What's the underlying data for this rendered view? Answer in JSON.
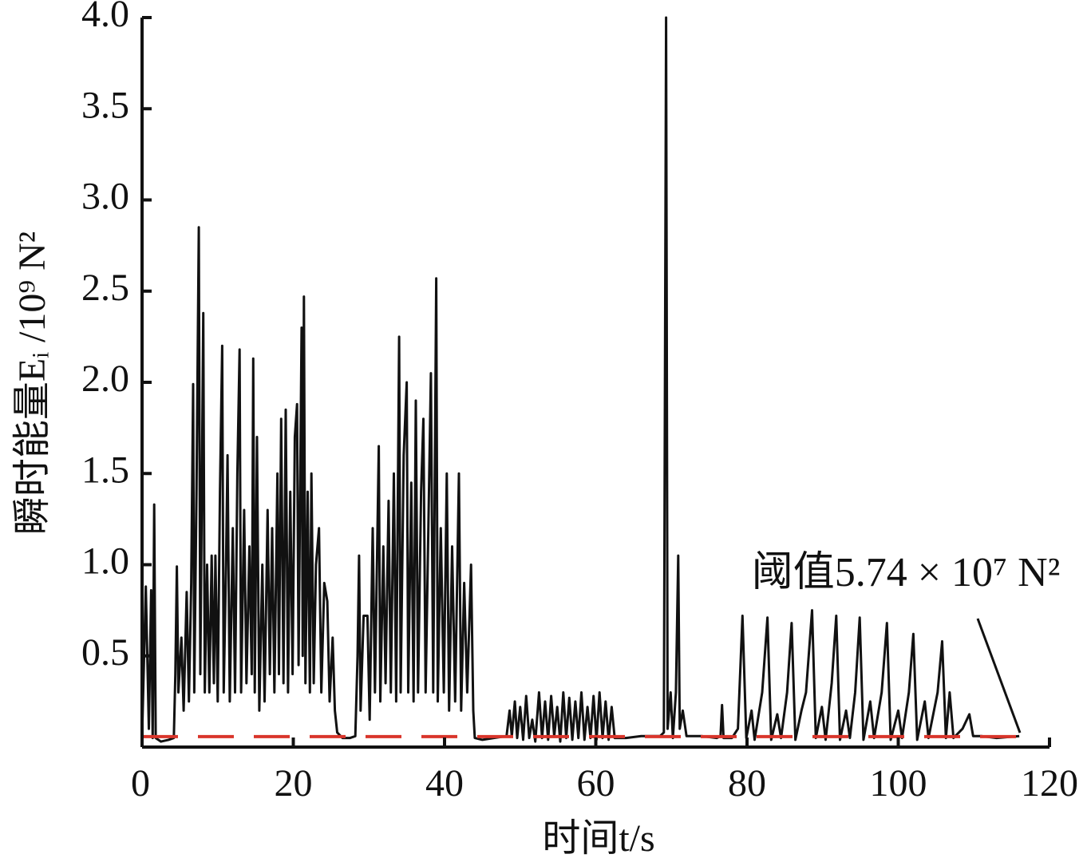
{
  "chart_data": {
    "type": "line",
    "y_label": "瞬时能量Eᵢ /10⁹ N²",
    "x_label": "时间t/s",
    "xlim": [
      0,
      120
    ],
    "ylim": [
      0,
      4
    ],
    "xticks": [
      0,
      20,
      40,
      60,
      80,
      100,
      120
    ],
    "yticks": [
      0.5,
      {
        "value": 1,
        "label": "1.0"
      },
      1.5,
      {
        "value": 2,
        "label": "2.0"
      },
      2.5,
      {
        "value": 3,
        "label": "3.0"
      },
      3.5,
      {
        "value": 4,
        "label": "4.0"
      }
    ],
    "threshold": {
      "value": 0.0574,
      "label": "阈值5.74 × 10⁷ N²",
      "color": "#d9352b"
    },
    "x": [
      0,
      0.5,
      0.9,
      1.2,
      1.4,
      1.6,
      1.8,
      2.5,
      3.5,
      4.2,
      4.4,
      4.6,
      4.8,
      5.2,
      5.5,
      5.9,
      6.2,
      6.5,
      6.75,
      6.9,
      7.2,
      7.5,
      7.7,
      8.1,
      8.3,
      8.6,
      8.9,
      9.2,
      9.5,
      9.7,
      10,
      10.3,
      10.6,
      10.8,
      11.1,
      11.3,
      11.6,
      12,
      12.3,
      12.6,
      12.9,
      13.1,
      13.5,
      13.8,
      14.2,
      14.5,
      14.7,
      14.9,
      15.2,
      15.5,
      15.9,
      16.2,
      16.6,
      16.9,
      17.2,
      17.5,
      17.9,
      18.1,
      18.4,
      18.7,
      19,
      19.3,
      19.6,
      19.9,
      20.2,
      20.5,
      20.7,
      21.1,
      21.25,
      21.4,
      21.6,
      21.9,
      22.2,
      22.4,
      22.7,
      23,
      23.4,
      23.7,
      24.1,
      24.5,
      24.8,
      25.2,
      25.5,
      25.8,
      26.5,
      27.5,
      28.2,
      28.5,
      28.7,
      28.9,
      29.3,
      29.8,
      30.1,
      30.5,
      30.8,
      31.3,
      31.5,
      31.9,
      32.2,
      32.6,
      32.9,
      33.3,
      33.6,
      34,
      34.2,
      34.6,
      35,
      35.2,
      35.6,
      35.9,
      36.2,
      36.5,
      36.9,
      37.2,
      37.5,
      37.9,
      38.2,
      38.5,
      38.9,
      39.1,
      39.5,
      39.9,
      40.3,
      40.6,
      41,
      41.4,
      41.9,
      42.2,
      42.6,
      43,
      43.5,
      43.8,
      44,
      45,
      46.5,
      48.2,
      48.6,
      48.9,
      49.3,
      49.6,
      50,
      50.4,
      50.8,
      51.2,
      51.6,
      52,
      52.5,
      52.9,
      53.3,
      53.7,
      54.1,
      54.5,
      54.9,
      55.3,
      55.7,
      56.1,
      56.5,
      56.9,
      57.3,
      57.7,
      58.1,
      58.5,
      58.9,
      59.3,
      59.7,
      60.1,
      60.5,
      60.9,
      61.3,
      61.7,
      62.1,
      62.5,
      64,
      66,
      68.5,
      69,
      69.3,
      69.5,
      69.9,
      70.2,
      70.6,
      70.9,
      71.1,
      71.5,
      72,
      74,
      76,
      76.5,
      76.7,
      76.9,
      78,
      78.8,
      79.4,
      79.9,
      80.6,
      81,
      82,
      82.7,
      83.2,
      84,
      84.5,
      85.3,
      85.9,
      86.4,
      87.2,
      87.8,
      88.6,
      89.1,
      89.9,
      90.4,
      91.2,
      91.8,
      92.3,
      93.1,
      93.6,
      94.3,
      94.9,
      95.4,
      96.3,
      96.8,
      97.8,
      98.5,
      99,
      100,
      100.5,
      101.4,
      102,
      102.5,
      103.5,
      104,
      105.2,
      105.8,
      106.3,
      106.8,
      107.3,
      108.5,
      109.4,
      109.9,
      111,
      113,
      116
    ],
    "series": [
      {
        "color": "#111111",
        "values": [
          0.05,
          0.88,
          0.1,
          0.86,
          0.05,
          1.33,
          0.05,
          0.03,
          0.04,
          0.05,
          0.4,
          0.99,
          0.3,
          0.6,
          0.2,
          0.85,
          0.25,
          0.9,
          1.99,
          0.3,
          1.4,
          2.85,
          0.4,
          2.38,
          0.3,
          1.0,
          0.3,
          1.05,
          0.35,
          1.05,
          0.25,
          1.4,
          2.2,
          0.3,
          1.0,
          1.6,
          0.25,
          1.2,
          0.3,
          1.5,
          2.18,
          0.3,
          1.3,
          0.35,
          1.1,
          0.4,
          2.13,
          0.3,
          1.7,
          0.2,
          1.0,
          0.25,
          1.3,
          0.4,
          1.2,
          0.3,
          1.5,
          0.4,
          1.8,
          0.35,
          1.85,
          0.3,
          1.4,
          0.4,
          1.7,
          1.88,
          0.45,
          2.3,
          0.5,
          2.47,
          0.35,
          1.4,
          0.3,
          1.5,
          0.35,
          1.0,
          1.2,
          0.3,
          0.9,
          0.8,
          0.25,
          0.6,
          0.2,
          0.08,
          0.05,
          0.05,
          0.06,
          0.5,
          1.05,
          0.2,
          0.72,
          0.72,
          0.15,
          1.2,
          0.3,
          1.65,
          0.25,
          1.1,
          0.35,
          1.35,
          0.3,
          1.5,
          0.25,
          2.25,
          0.3,
          1.6,
          2.0,
          0.3,
          1.45,
          0.25,
          1.9,
          0.3,
          1.4,
          1.8,
          0.3,
          1.3,
          2.05,
          0.3,
          2.57,
          0.25,
          1.2,
          0.3,
          1.5,
          0.2,
          1.1,
          0.25,
          1.5,
          0.2,
          0.9,
          0.3,
          1.0,
          0.2,
          0.05,
          0.04,
          0.05,
          0.06,
          0.2,
          0.06,
          0.25,
          0.05,
          0.22,
          0.04,
          0.28,
          0.05,
          0.15,
          0.03,
          0.3,
          0.05,
          0.25,
          0.04,
          0.28,
          0.06,
          0.22,
          0.03,
          0.3,
          0.05,
          0.27,
          0.04,
          0.25,
          0.05,
          0.3,
          0.04,
          0.22,
          0.05,
          0.28,
          0.04,
          0.3,
          0.05,
          0.25,
          0.04,
          0.22,
          0.05,
          0.05,
          0.06,
          0.06,
          0.08,
          4.0,
          0.1,
          0.3,
          0.05,
          0.3,
          1.05,
          0.1,
          0.2,
          0.06,
          0.06,
          0.05,
          0.06,
          0.23,
          0.05,
          0.05,
          0.1,
          0.72,
          0.05,
          0.2,
          0.04,
          0.3,
          0.71,
          0.04,
          0.18,
          0.05,
          0.3,
          0.68,
          0.04,
          0.2,
          0.3,
          0.75,
          0.05,
          0.22,
          0.04,
          0.35,
          0.72,
          0.04,
          0.2,
          0.05,
          0.3,
          0.71,
          0.04,
          0.25,
          0.05,
          0.3,
          0.68,
          0.04,
          0.2,
          0.05,
          0.3,
          0.62,
          0.04,
          0.25,
          0.05,
          0.3,
          0.58,
          0.05,
          0.3,
          0.05,
          0.1,
          0.18,
          0.06,
          0.06,
          0.05,
          0.06
        ]
      }
    ]
  }
}
